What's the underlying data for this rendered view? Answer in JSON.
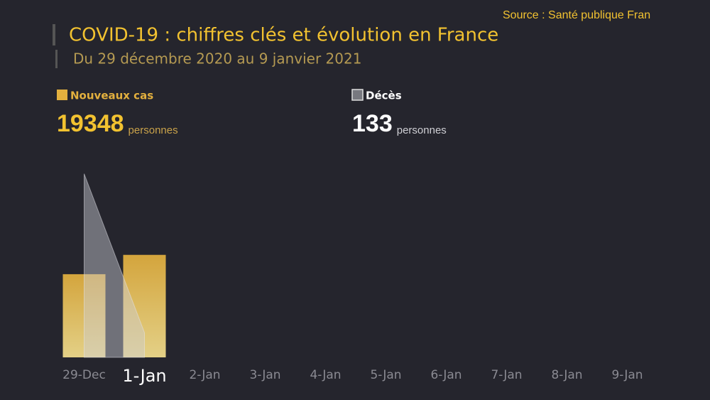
{
  "chart_data": {
    "type": "bar-area",
    "source": "Source : Santé publique Fran",
    "title": "COVID-19 : chiffres clés et évolution en France",
    "subtitle": "Du 29 décembre 2020 au 9 janvier 2021",
    "unit_label": "personnes",
    "categories": [
      "29-Dec",
      "1-Jan",
      "2-Jan",
      "3-Jan",
      "4-Jan",
      "5-Jan",
      "6-Jan",
      "7-Jan",
      "8-Jan",
      "9-Jan"
    ],
    "highlight_index": 1,
    "ylim": [
      0,
      35000
    ],
    "y2lim": [
      0,
      1000
    ],
    "series": [
      {
        "name": "Nouveaux cas",
        "color": "#e3b03e",
        "values": [
          15700,
          19348,
          null,
          null,
          null,
          null,
          null,
          null,
          null,
          null
        ]
      },
      {
        "name": "Décès",
        "color": "#8a8b94",
        "axis": "y2",
        "values": [
          990,
          133,
          null,
          null,
          null,
          null,
          null,
          null,
          null,
          null
        ]
      }
    ]
  }
}
